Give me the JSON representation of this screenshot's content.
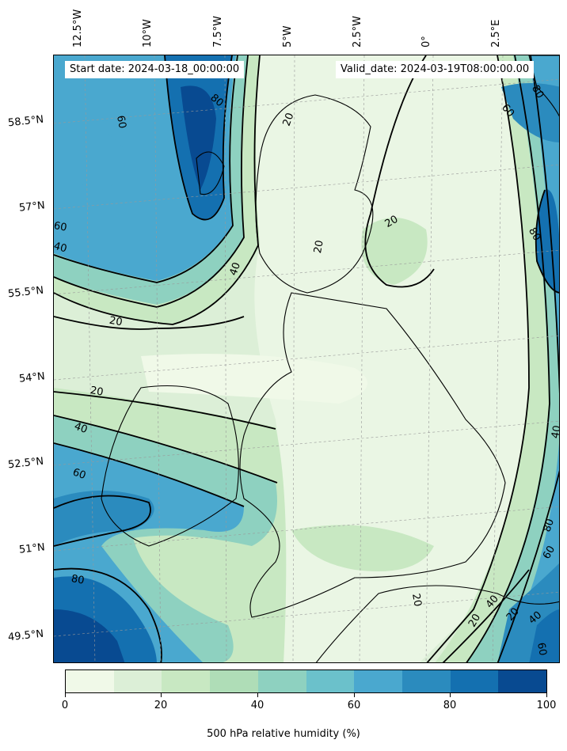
{
  "header": {
    "start_label": "Start date: 2024-03-18_00:00:00",
    "valid_label": "Valid_date: 2024-03-19T08:00:00.00"
  },
  "lon_ticks": [
    "12.5°W",
    "10°W",
    "7.5°W",
    "5°W",
    "2.5°W",
    "0°",
    "2.5°E"
  ],
  "lat_ticks": [
    "58.5°N",
    "57°N",
    "55.5°N",
    "54°N",
    "52.5°N",
    "51°N",
    "49.5°N"
  ],
  "colorbar": {
    "title": "500 hPa relative humidity (%)",
    "tick_labels": [
      "0",
      "20",
      "40",
      "60",
      "80",
      "100"
    ],
    "colors": [
      "#f0f9e8",
      "#dcefd7",
      "#c8e8c2",
      "#afddb7",
      "#8ed1c0",
      "#6bc1cb",
      "#4aa8cf",
      "#2b8bbe",
      "#1470b0",
      "#084a91"
    ]
  },
  "contour_labels": [
    "60",
    "80",
    "20",
    "60",
    "40",
    "20",
    "20",
    "20",
    "40",
    "60",
    "80",
    "60",
    "80",
    "80",
    "40",
    "60",
    "80",
    "20",
    "20",
    "40",
    "40",
    "20",
    "60",
    "20",
    "40"
  ]
}
